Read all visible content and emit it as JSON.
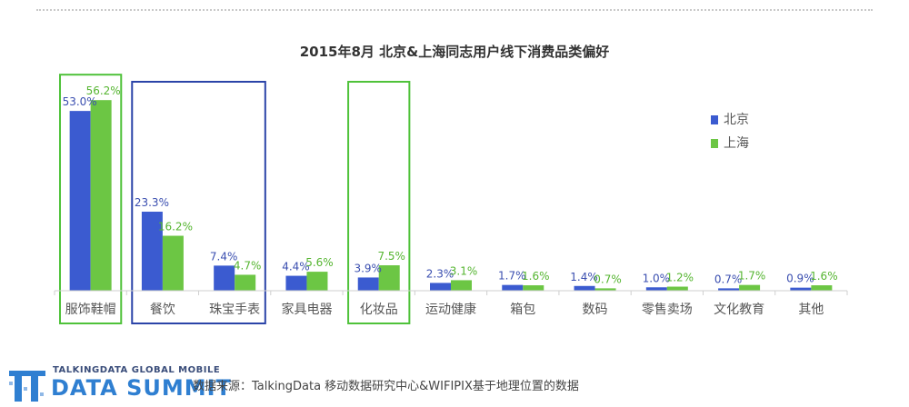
{
  "chart_data": {
    "type": "bar",
    "title": "2015年8月  北京&上海同志用户线下消费品类偏好",
    "categories": [
      "服饰鞋帽",
      "餐饮",
      "珠宝手表",
      "家具电器",
      "化妆品",
      "运动健康",
      "箱包",
      "数码",
      "零售卖场",
      "文化教育",
      "其他"
    ],
    "series": [
      {
        "name": "北京",
        "values": [
          53.0,
          23.3,
          7.4,
          4.4,
          3.9,
          2.3,
          1.7,
          1.4,
          1.0,
          0.7,
          0.9
        ],
        "labels": [
          "53.0%",
          "23.3%",
          "7.4%",
          "4.4%",
          "3.9%",
          "2.3%",
          "1.7%",
          "1.4%",
          "1.0%",
          "0.7%",
          "0.9%"
        ],
        "color": "#3b5bd0"
      },
      {
        "name": "上海",
        "values": [
          56.2,
          16.2,
          4.7,
          5.6,
          7.5,
          3.1,
          1.6,
          0.7,
          1.2,
          1.7,
          1.6
        ],
        "labels": [
          "56.2%",
          "16.2%",
          "4.7%",
          "5.6%",
          "7.5%",
          "3.1%",
          "1.6%",
          "0.7%",
          "1.2%",
          "1.7%",
          "1.6%"
        ],
        "color": "#6cc644"
      }
    ],
    "ylim": [
      0,
      60
    ],
    "legend_position": "right",
    "highlights": [
      {
        "categories": [
          0
        ],
        "color": "#4fc23a"
      },
      {
        "categories": [
          1,
          2
        ],
        "color": "#2b44a8"
      },
      {
        "categories": [
          4
        ],
        "color": "#4fc23a"
      }
    ]
  },
  "footer": {
    "logo_line1": "TALKINGDATA GLOBAL MOBILE",
    "logo_line2": "DATA SUMMIT",
    "source": "数据来源：TalkingData 移动数据研究中心&WIFIPIX基于地理位置的数据"
  }
}
